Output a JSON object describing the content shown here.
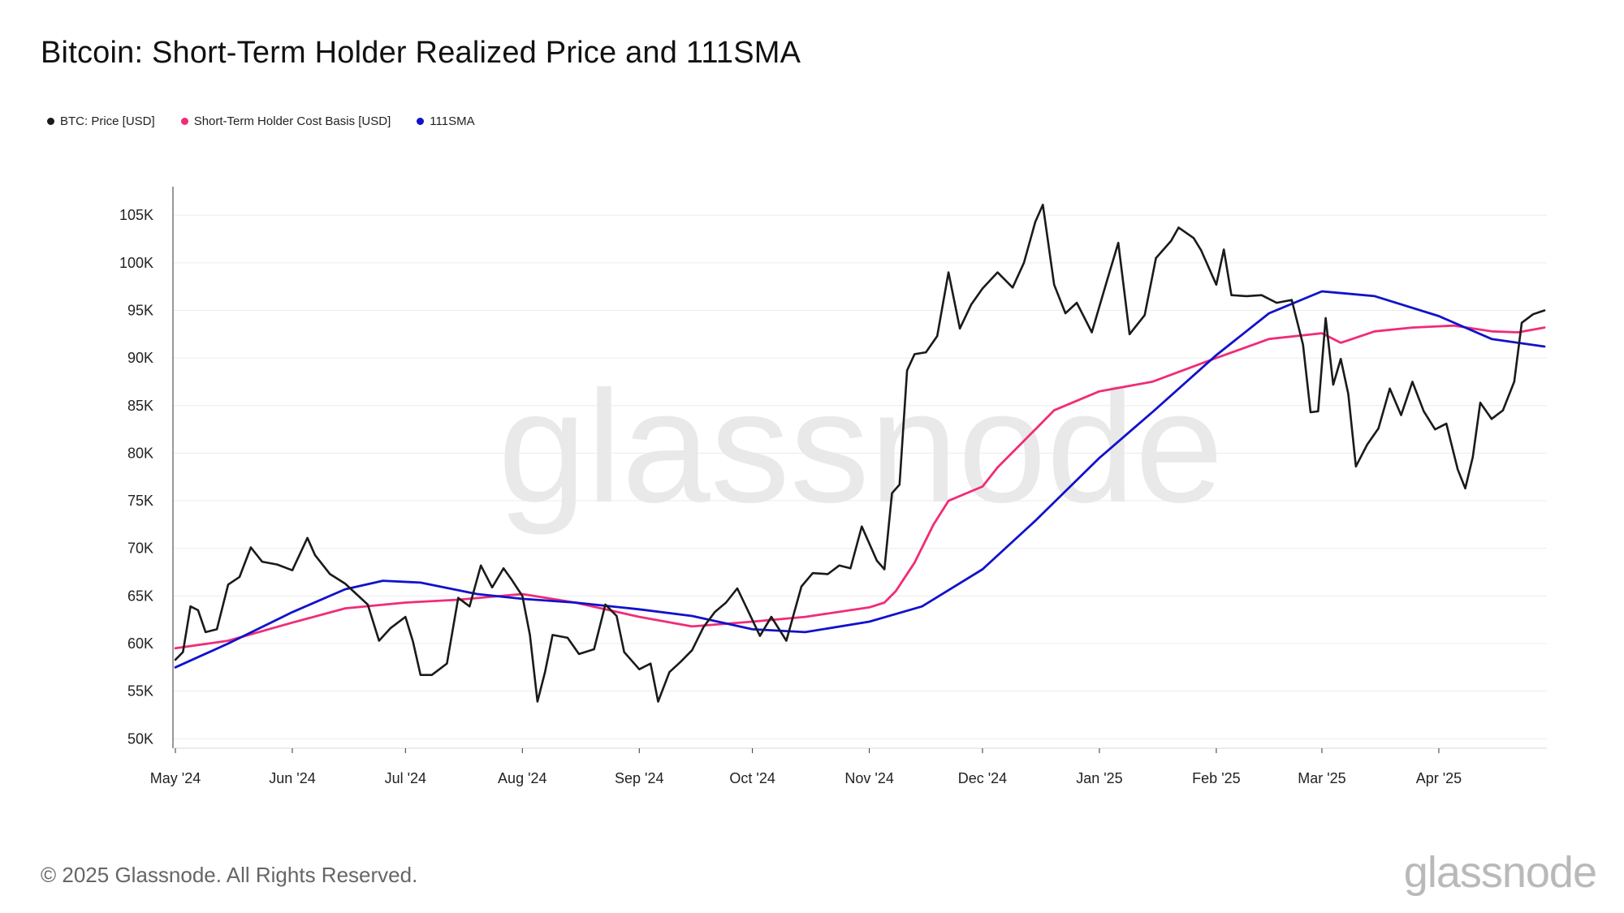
{
  "chart_data": {
    "type": "line",
    "title": "Bitcoin: Short-Term Holder Realized Price and 111SMA",
    "watermark": "glassnode",
    "x_tick_labels": [
      "May '24",
      "Jun '24",
      "Jul '24",
      "Aug '24",
      "Sep '24",
      "Oct '24",
      "Nov '24",
      "Dec '24",
      "Jan '25",
      "Feb '25",
      "Mar '25",
      "Apr '25"
    ],
    "y_tick_labels": [
      "50K",
      "55K",
      "60K",
      "65K",
      "70K",
      "75K",
      "80K",
      "85K",
      "90K",
      "95K",
      "100K",
      "105K"
    ],
    "y_ticks": [
      50000,
      55000,
      60000,
      65000,
      70000,
      75000,
      80000,
      85000,
      90000,
      95000,
      100000,
      105000
    ],
    "xlim": [
      "2024-05-01",
      "2025-04-29"
    ],
    "ylim": [
      49000,
      108000
    ],
    "grid": true,
    "legend_position": "top-left",
    "series": [
      {
        "name": "BTC: Price [USD]",
        "color": "#1a1a1a",
        "points": [
          [
            "2024-05-01",
            58300
          ],
          [
            "2024-05-03",
            59100
          ],
          [
            "2024-05-05",
            63900
          ],
          [
            "2024-05-07",
            63500
          ],
          [
            "2024-05-09",
            61200
          ],
          [
            "2024-05-12",
            61500
          ],
          [
            "2024-05-15",
            66200
          ],
          [
            "2024-05-18",
            67000
          ],
          [
            "2024-05-21",
            70100
          ],
          [
            "2024-05-24",
            68600
          ],
          [
            "2024-05-28",
            68300
          ],
          [
            "2024-06-01",
            67700
          ],
          [
            "2024-06-05",
            71100
          ],
          [
            "2024-06-07",
            69300
          ],
          [
            "2024-06-11",
            67300
          ],
          [
            "2024-06-15",
            66300
          ],
          [
            "2024-06-18",
            65200
          ],
          [
            "2024-06-21",
            64100
          ],
          [
            "2024-06-24",
            60300
          ],
          [
            "2024-06-27",
            61600
          ],
          [
            "2024-07-01",
            62800
          ],
          [
            "2024-07-03",
            60200
          ],
          [
            "2024-07-05",
            56700
          ],
          [
            "2024-07-08",
            56700
          ],
          [
            "2024-07-12",
            57900
          ],
          [
            "2024-07-15",
            64800
          ],
          [
            "2024-07-18",
            63900
          ],
          [
            "2024-07-21",
            68200
          ],
          [
            "2024-07-24",
            65900
          ],
          [
            "2024-07-27",
            67900
          ],
          [
            "2024-07-29",
            66800
          ],
          [
            "2024-08-01",
            65000
          ],
          [
            "2024-08-03",
            60900
          ],
          [
            "2024-08-05",
            53900
          ],
          [
            "2024-08-07",
            57000
          ],
          [
            "2024-08-09",
            60900
          ],
          [
            "2024-08-13",
            60600
          ],
          [
            "2024-08-16",
            58900
          ],
          [
            "2024-08-20",
            59400
          ],
          [
            "2024-08-23",
            64100
          ],
          [
            "2024-08-26",
            62900
          ],
          [
            "2024-08-28",
            59100
          ],
          [
            "2024-09-01",
            57300
          ],
          [
            "2024-09-04",
            57900
          ],
          [
            "2024-09-06",
            53900
          ],
          [
            "2024-09-09",
            57000
          ],
          [
            "2024-09-12",
            58100
          ],
          [
            "2024-09-15",
            59300
          ],
          [
            "2024-09-18",
            61700
          ],
          [
            "2024-09-21",
            63300
          ],
          [
            "2024-09-24",
            64300
          ],
          [
            "2024-09-27",
            65800
          ],
          [
            "2024-09-30",
            63300
          ],
          [
            "2024-10-03",
            60800
          ],
          [
            "2024-10-06",
            62800
          ],
          [
            "2024-10-10",
            60300
          ],
          [
            "2024-10-14",
            66000
          ],
          [
            "2024-10-17",
            67400
          ],
          [
            "2024-10-21",
            67300
          ],
          [
            "2024-10-24",
            68200
          ],
          [
            "2024-10-27",
            67900
          ],
          [
            "2024-10-30",
            72300
          ],
          [
            "2024-11-03",
            68700
          ],
          [
            "2024-11-05",
            67800
          ],
          [
            "2024-11-07",
            75800
          ],
          [
            "2024-11-09",
            76700
          ],
          [
            "2024-11-11",
            88700
          ],
          [
            "2024-11-13",
            90400
          ],
          [
            "2024-11-16",
            90600
          ],
          [
            "2024-11-19",
            92300
          ],
          [
            "2024-11-22",
            99000
          ],
          [
            "2024-11-25",
            93100
          ],
          [
            "2024-11-28",
            95600
          ],
          [
            "2024-12-01",
            97300
          ],
          [
            "2024-12-05",
            99000
          ],
          [
            "2024-12-09",
            97400
          ],
          [
            "2024-12-12",
            100000
          ],
          [
            "2024-12-15",
            104300
          ],
          [
            "2024-12-17",
            106100
          ],
          [
            "2024-12-20",
            97700
          ],
          [
            "2024-12-23",
            94700
          ],
          [
            "2024-12-26",
            95800
          ],
          [
            "2024-12-30",
            92700
          ],
          [
            "2025-01-03",
            98100
          ],
          [
            "2025-01-06",
            102100
          ],
          [
            "2025-01-09",
            92500
          ],
          [
            "2025-01-13",
            94500
          ],
          [
            "2025-01-16",
            100500
          ],
          [
            "2025-01-20",
            102300
          ],
          [
            "2025-01-22",
            103700
          ],
          [
            "2025-01-26",
            102600
          ],
          [
            "2025-01-28",
            101300
          ],
          [
            "2025-02-01",
            97700
          ],
          [
            "2025-02-03",
            101400
          ],
          [
            "2025-02-05",
            96600
          ],
          [
            "2025-02-09",
            96500
          ],
          [
            "2025-02-13",
            96600
          ],
          [
            "2025-02-17",
            95800
          ],
          [
            "2025-02-21",
            96100
          ],
          [
            "2025-02-24",
            91400
          ],
          [
            "2025-02-26",
            84300
          ],
          [
            "2025-02-28",
            84400
          ],
          [
            "2025-03-02",
            94200
          ],
          [
            "2025-03-04",
            87200
          ],
          [
            "2025-03-06",
            89900
          ],
          [
            "2025-03-08",
            86200
          ],
          [
            "2025-03-10",
            78600
          ],
          [
            "2025-03-13",
            80900
          ],
          [
            "2025-03-16",
            82600
          ],
          [
            "2025-03-19",
            86800
          ],
          [
            "2025-03-22",
            84000
          ],
          [
            "2025-03-25",
            87500
          ],
          [
            "2025-03-28",
            84400
          ],
          [
            "2025-03-31",
            82500
          ],
          [
            "2025-04-03",
            83100
          ],
          [
            "2025-04-06",
            78300
          ],
          [
            "2025-04-08",
            76300
          ],
          [
            "2025-04-10",
            79600
          ],
          [
            "2025-04-12",
            85300
          ],
          [
            "2025-04-15",
            83600
          ],
          [
            "2025-04-18",
            84500
          ],
          [
            "2025-04-21",
            87500
          ],
          [
            "2025-04-23",
            93700
          ],
          [
            "2025-04-26",
            94600
          ],
          [
            "2025-04-29",
            95000
          ]
        ]
      },
      {
        "name": "Short-Term Holder Cost Basis [USD]",
        "color": "#f02c77",
        "points": [
          [
            "2024-05-01",
            59500
          ],
          [
            "2024-05-15",
            60300
          ],
          [
            "2024-06-01",
            62200
          ],
          [
            "2024-06-15",
            63700
          ],
          [
            "2024-07-01",
            64300
          ],
          [
            "2024-07-15",
            64600
          ],
          [
            "2024-08-01",
            65200
          ],
          [
            "2024-08-15",
            64300
          ],
          [
            "2024-09-01",
            62800
          ],
          [
            "2024-09-15",
            61800
          ],
          [
            "2024-10-01",
            62300
          ],
          [
            "2024-10-15",
            62800
          ],
          [
            "2024-11-01",
            63800
          ],
          [
            "2024-11-05",
            64300
          ],
          [
            "2024-11-08",
            65500
          ],
          [
            "2024-11-13",
            68500
          ],
          [
            "2024-11-18",
            72500
          ],
          [
            "2024-11-22",
            75000
          ],
          [
            "2024-12-01",
            76500
          ],
          [
            "2024-12-05",
            78500
          ],
          [
            "2024-12-10",
            80500
          ],
          [
            "2024-12-15",
            82500
          ],
          [
            "2024-12-20",
            84500
          ],
          [
            "2025-01-01",
            86500
          ],
          [
            "2025-01-15",
            87500
          ],
          [
            "2025-02-01",
            90000
          ],
          [
            "2025-02-15",
            92000
          ],
          [
            "2025-03-01",
            92600
          ],
          [
            "2025-03-06",
            91600
          ],
          [
            "2025-03-15",
            92800
          ],
          [
            "2025-03-25",
            93200
          ],
          [
            "2025-04-05",
            93400
          ],
          [
            "2025-04-15",
            92800
          ],
          [
            "2025-04-22",
            92700
          ],
          [
            "2025-04-29",
            93200
          ]
        ]
      },
      {
        "name": "111SMA",
        "color": "#1111cc",
        "points": [
          [
            "2024-05-01",
            57500
          ],
          [
            "2024-05-15",
            60000
          ],
          [
            "2024-06-01",
            63300
          ],
          [
            "2024-06-15",
            65700
          ],
          [
            "2024-06-25",
            66600
          ],
          [
            "2024-07-05",
            66400
          ],
          [
            "2024-07-20",
            65200
          ],
          [
            "2024-08-01",
            64700
          ],
          [
            "2024-08-15",
            64300
          ],
          [
            "2024-09-01",
            63600
          ],
          [
            "2024-09-15",
            62900
          ],
          [
            "2024-10-01",
            61500
          ],
          [
            "2024-10-15",
            61200
          ],
          [
            "2024-11-01",
            62300
          ],
          [
            "2024-11-15",
            63900
          ],
          [
            "2024-12-01",
            67800
          ],
          [
            "2024-12-15",
            72900
          ],
          [
            "2025-01-01",
            79500
          ],
          [
            "2025-01-15",
            84300
          ],
          [
            "2025-02-01",
            90300
          ],
          [
            "2025-02-15",
            94700
          ],
          [
            "2025-03-01",
            97000
          ],
          [
            "2025-03-15",
            96500
          ],
          [
            "2025-04-01",
            94400
          ],
          [
            "2025-04-15",
            92000
          ],
          [
            "2025-04-29",
            91200
          ]
        ]
      }
    ]
  },
  "footer": {
    "copyright": "© 2025 Glassnode. All Rights Reserved.",
    "logo_text": "glassnode"
  }
}
